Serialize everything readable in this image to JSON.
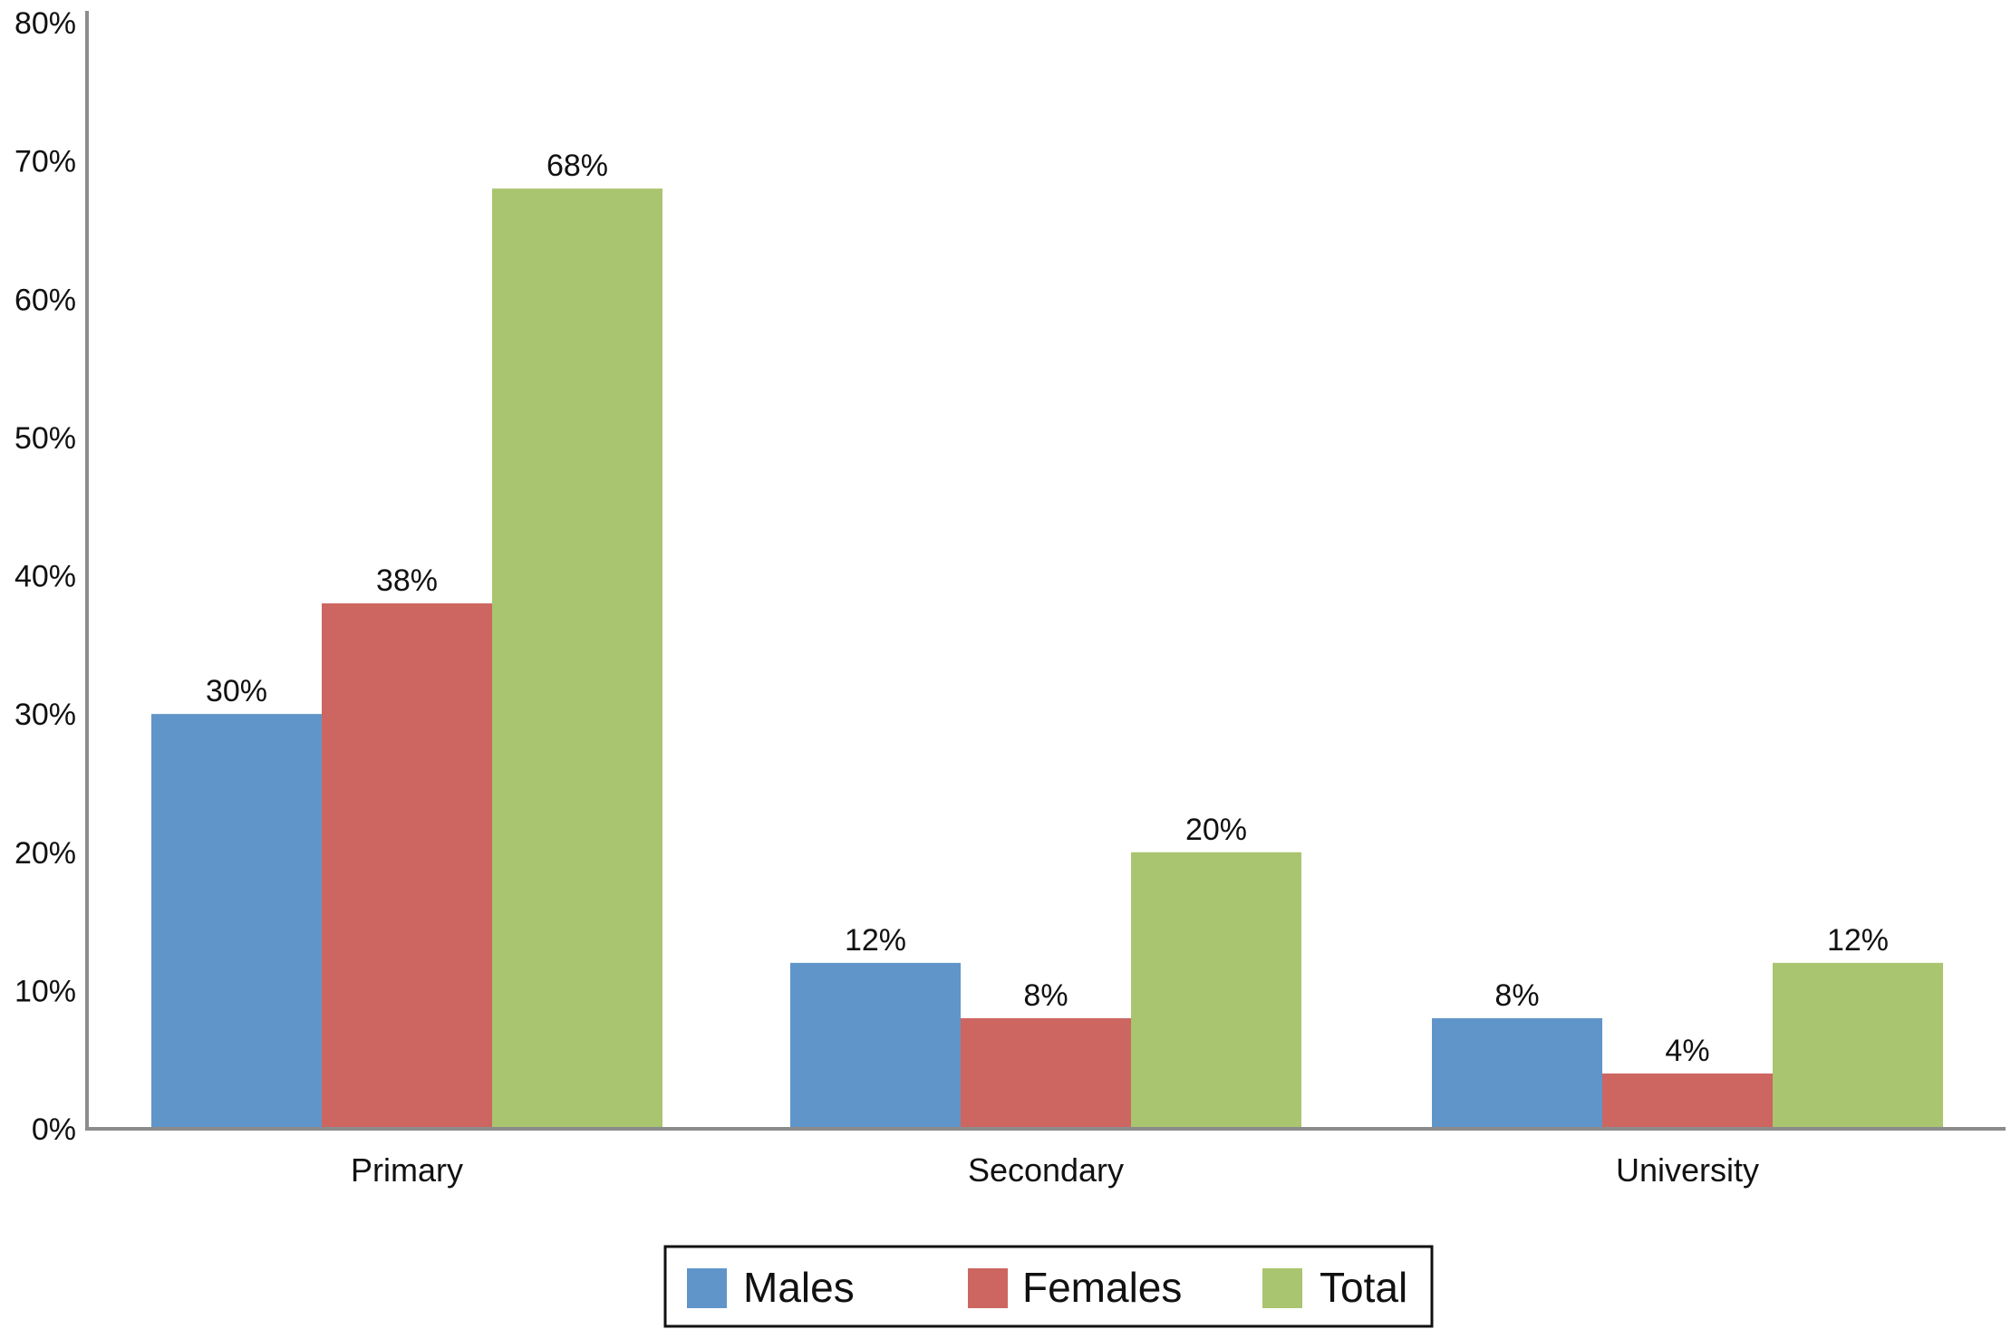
{
  "chart_data": {
    "type": "bar",
    "categories": [
      "Primary",
      "Secondary",
      "University"
    ],
    "series": [
      {
        "name": "Males",
        "values": [
          30,
          12,
          8
        ],
        "labels": [
          "30%",
          "12%",
          "8%"
        ],
        "color": "#6095C9"
      },
      {
        "name": "Females",
        "values": [
          38,
          8,
          4
        ],
        "labels": [
          "38%",
          "8%",
          "4%"
        ],
        "color": "#CD6661"
      },
      {
        "name": "Total",
        "values": [
          68,
          20,
          12
        ],
        "labels": [
          "68%",
          "20%",
          "12%"
        ],
        "color": "#A9C56F"
      }
    ],
    "ylim": [
      0,
      80
    ],
    "yticks": [
      0,
      10,
      20,
      30,
      40,
      50,
      60,
      70,
      80
    ],
    "ytick_labels": [
      "0%",
      "10%",
      "20%",
      "30%",
      "40%",
      "50%",
      "60%",
      "70%",
      "80%"
    ],
    "grid": false,
    "legend_position": "bottom-center",
    "axis_color": "#8C8C8C"
  }
}
